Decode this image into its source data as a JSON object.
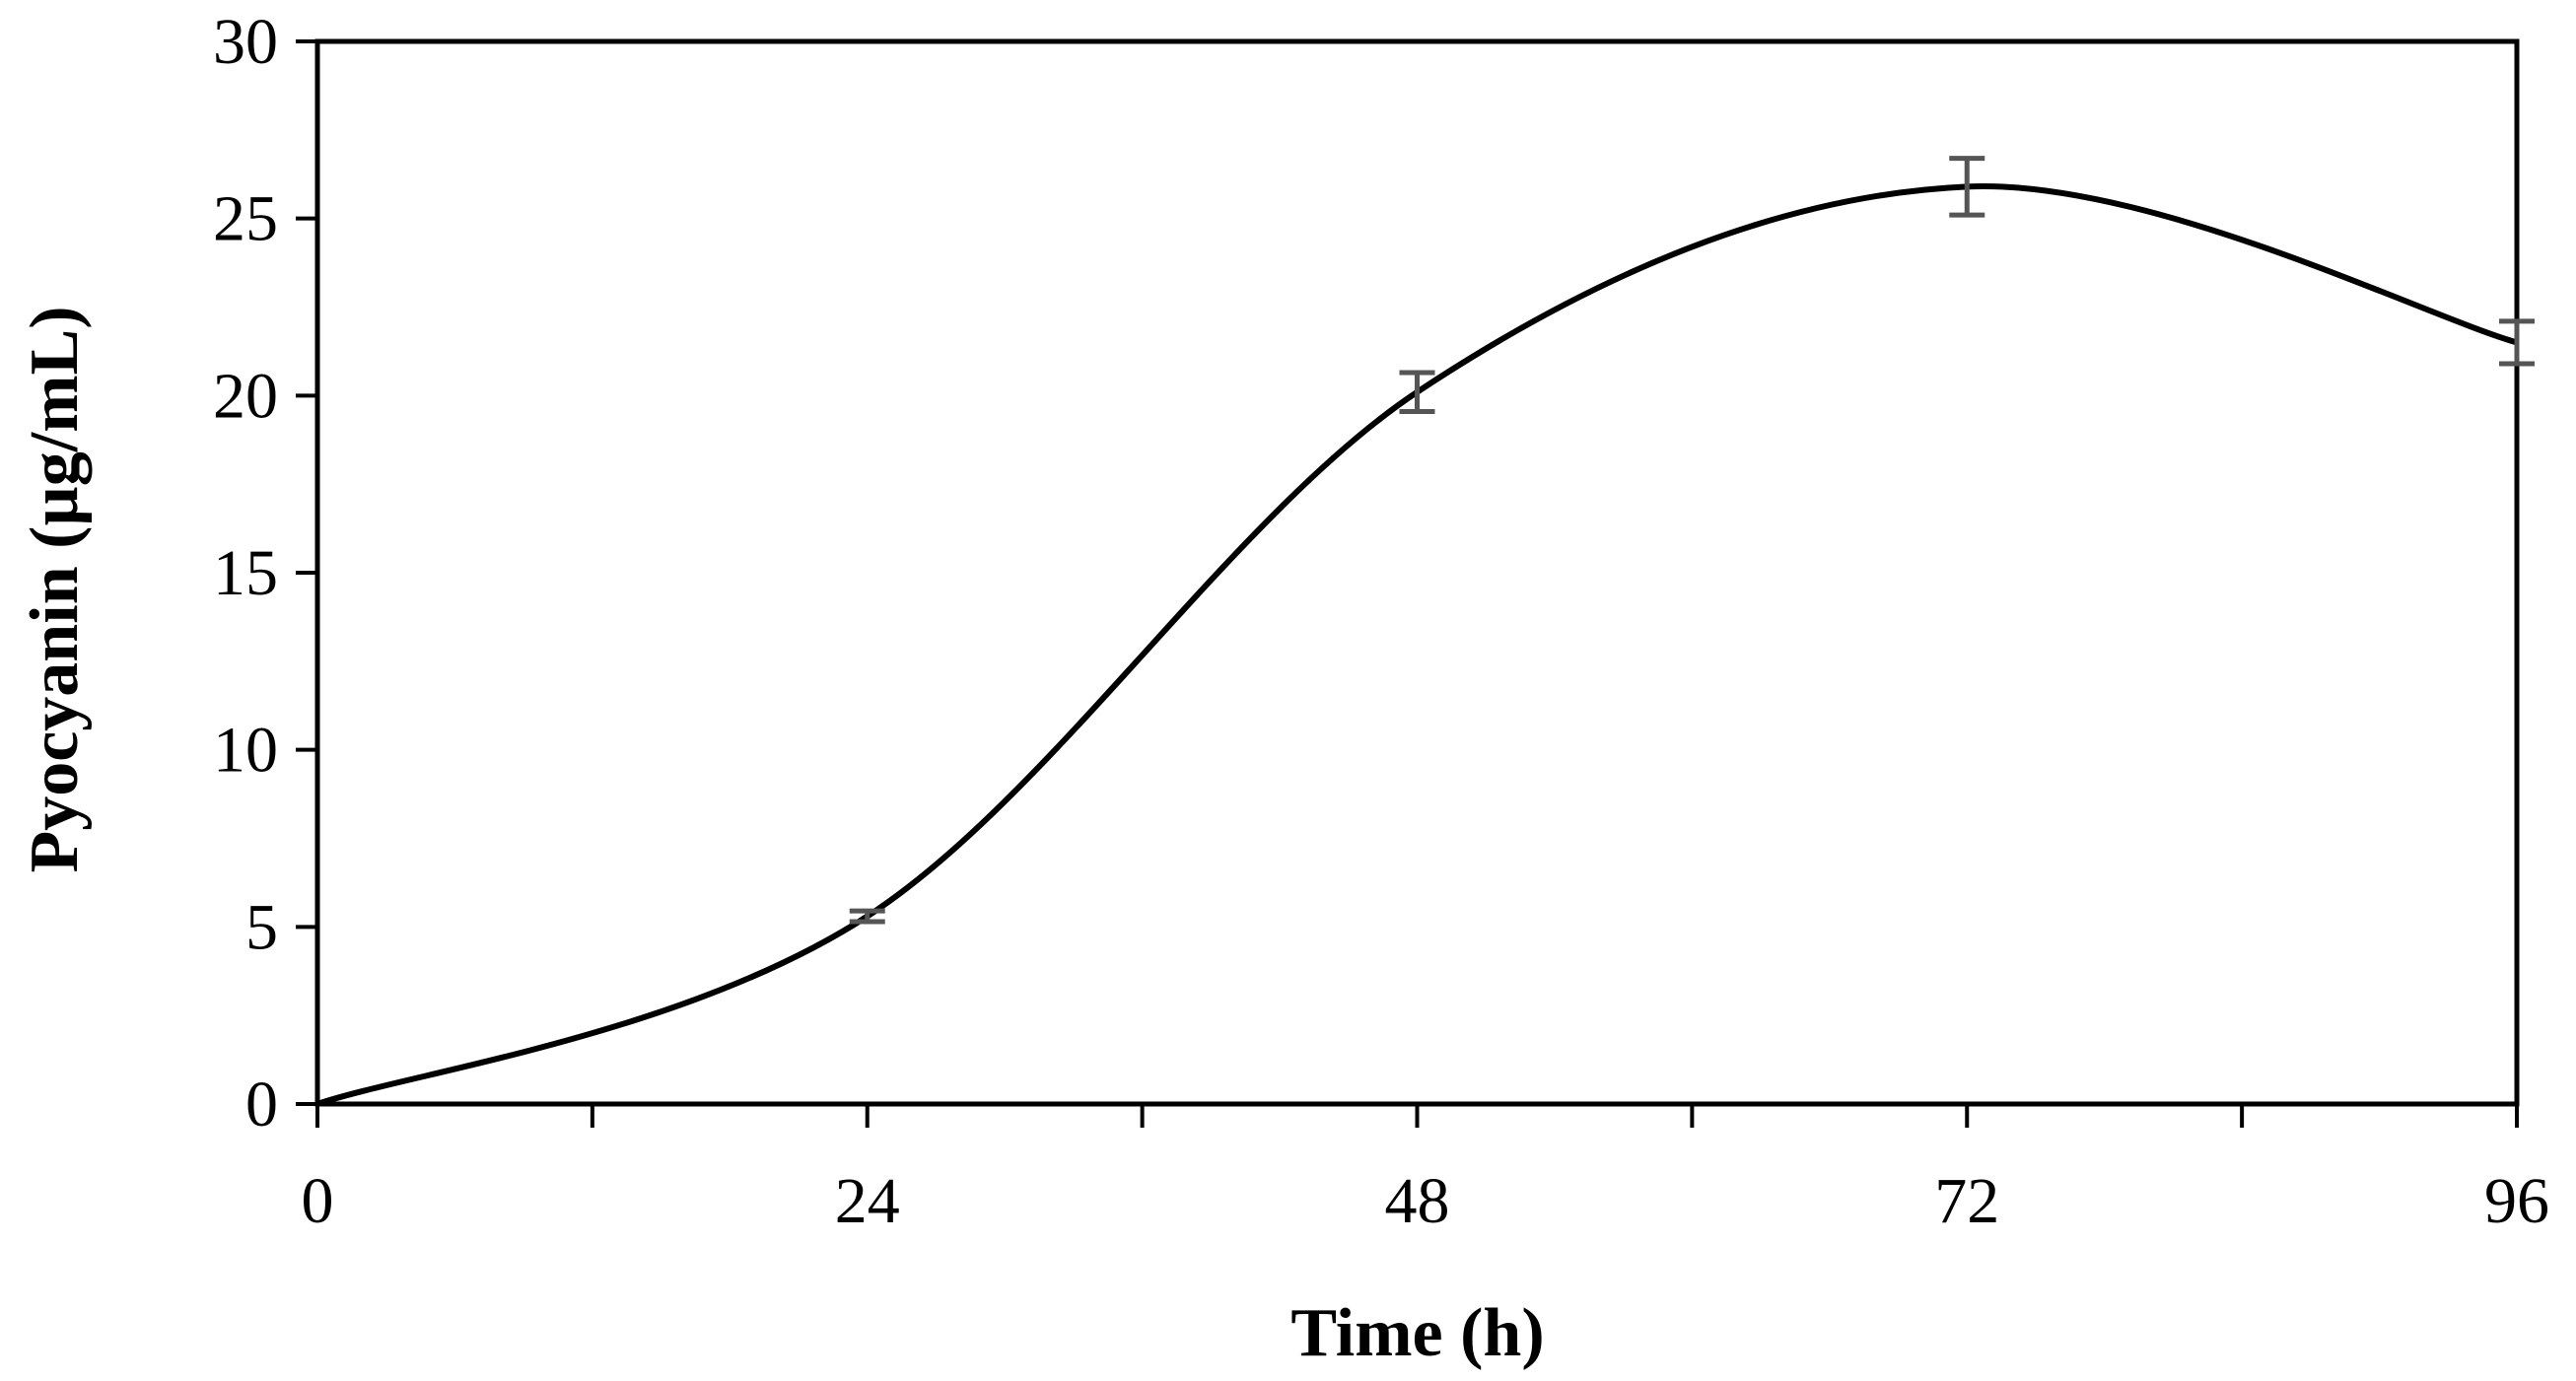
{
  "chart_data": {
    "type": "line",
    "title": "",
    "xlabel": "Time (h)",
    "ylabel": "Pyocyanin (µg/mL)",
    "xlim": [
      0,
      96
    ],
    "ylim": [
      0,
      30
    ],
    "x_ticks": [
      0,
      24,
      48,
      72,
      96
    ],
    "x_minor_ticks": [
      12,
      36,
      60,
      84
    ],
    "y_ticks": [
      0,
      5,
      10,
      15,
      20,
      25,
      30
    ],
    "grid": false,
    "legend": "none",
    "smooth": true,
    "series": [
      {
        "x": [
          0,
          24,
          48,
          72,
          96
        ],
        "values": [
          0,
          5.3,
          20.1,
          25.9,
          21.5
        ],
        "error": [
          0,
          0.15,
          0.55,
          0.8,
          0.6
        ],
        "line_color": "#000000",
        "error_color": "#555555"
      }
    ]
  }
}
